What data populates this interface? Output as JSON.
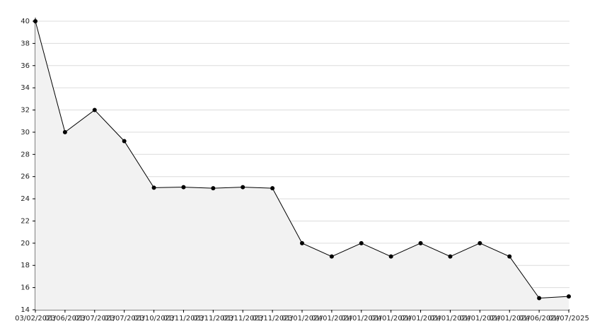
{
  "chart_data": {
    "type": "line",
    "categories": [
      "03/02/2023",
      "01/06/2023",
      "01/07/2023",
      "01/07/2023",
      "01/10/2023",
      "01/11/2023",
      "01/11/2023",
      "01/11/2023",
      "01/11/2023",
      "01/01/2024",
      "01/01/2024",
      "01/01/2024",
      "01/01/2024",
      "01/01/2024",
      "01/01/2024",
      "01/01/2024",
      "01/01/2024",
      "01/06/2024",
      "01/07/2025"
    ],
    "values": [
      40,
      30,
      32,
      29.2,
      25,
      25.05,
      24.95,
      25.05,
      24.95,
      20,
      18.8,
      20,
      18.8,
      20,
      18.8,
      20,
      18.8,
      15.05,
      15.2
    ],
    "color": "#000000",
    "fill": "#f2f2f2",
    "ylim": [
      14,
      40
    ],
    "yticks": [
      14,
      16,
      18,
      20,
      22,
      24,
      26,
      28,
      30,
      32,
      34,
      36,
      38,
      40
    ],
    "grid": true
  }
}
